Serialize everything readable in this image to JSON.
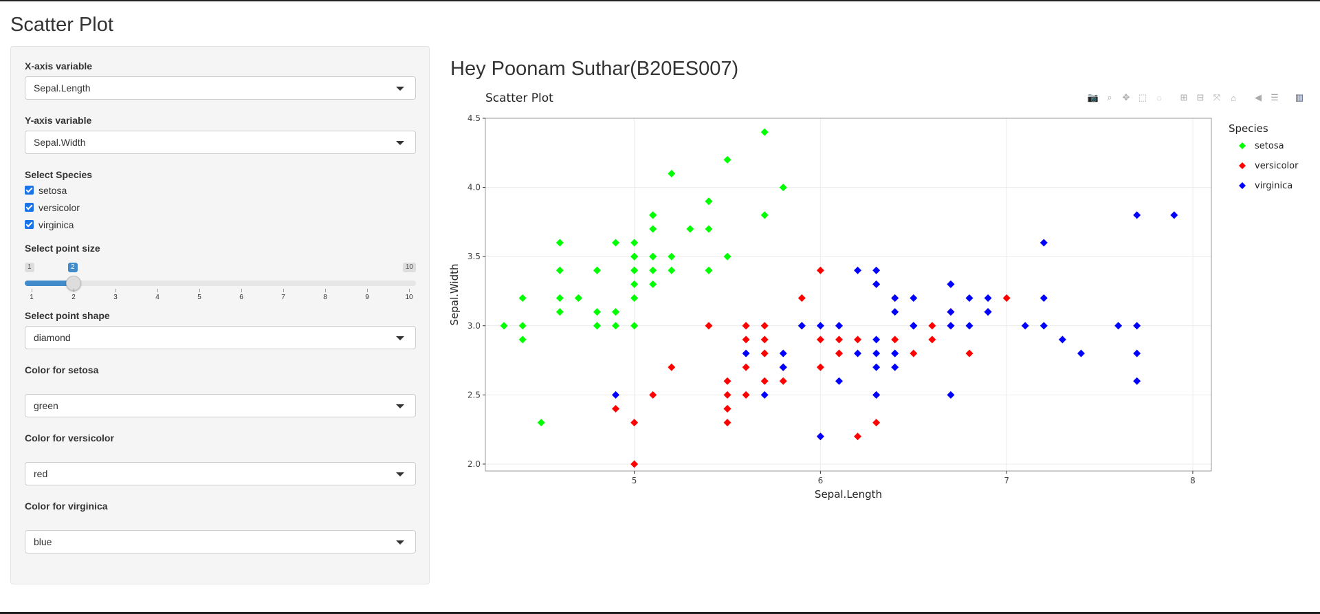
{
  "app_title": "Scatter Plot",
  "sidebar": {
    "x_label": "X-axis variable",
    "x_value": "Sepal.Length",
    "y_label": "Y-axis variable",
    "y_value": "Sepal.Width",
    "species_label": "Select Species",
    "species": [
      "setosa",
      "versicolor",
      "virginica"
    ],
    "size_label": "Select point size",
    "size_min": "1",
    "size_max": "10",
    "size_value": 2,
    "size_value_label": "2",
    "size_ticks": [
      "1",
      "2",
      "3",
      "4",
      "5",
      "6",
      "7",
      "8",
      "9",
      "10"
    ],
    "shape_label": "Select point shape",
    "shape_value": "diamond",
    "setosa_color_label": "Color for setosa",
    "setosa_color_value": "green",
    "versicolor_color_label": "Color for versicolor",
    "versicolor_color_value": "red",
    "virginica_color_label": "Color for virginica",
    "virginica_color_value": "blue"
  },
  "main": {
    "heading": "Hey Poonam Suthar(B20ES007)"
  },
  "modebar_icons": [
    "camera-icon",
    "zoom-icon",
    "pan-icon",
    "box-select-icon",
    "lasso-icon",
    "zoom-in-icon",
    "zoom-out-icon",
    "autoscale-icon",
    "reset-axes-icon",
    "hover-closest-icon",
    "hover-compare-icon",
    "plotly-logo-icon"
  ],
  "accent_color": "#428bca",
  "chart_data": {
    "type": "scatter",
    "title": "Scatter Plot",
    "xlabel": "Sepal.Length",
    "ylabel": "Sepal.Width",
    "xlim": [
      4.2,
      8.1
    ],
    "ylim": [
      1.95,
      4.5
    ],
    "xticks": [
      5,
      6,
      7,
      8
    ],
    "yticks": [
      2.0,
      2.5,
      3.0,
      3.5,
      4.0,
      4.5
    ],
    "ytick_labels": [
      "2.0",
      "2.5",
      "3.0",
      "3.5",
      "4.0",
      "4.5"
    ],
    "grid": true,
    "legend_title": "Species",
    "legend_position": "top-right",
    "marker": "diamond",
    "series": [
      {
        "name": "setosa",
        "color": "#00ff00",
        "points": [
          [
            5.1,
            3.5
          ],
          [
            4.9,
            3.0
          ],
          [
            4.7,
            3.2
          ],
          [
            4.6,
            3.1
          ],
          [
            5.0,
            3.6
          ],
          [
            5.4,
            3.9
          ],
          [
            4.6,
            3.4
          ],
          [
            5.0,
            3.4
          ],
          [
            4.4,
            2.9
          ],
          [
            4.9,
            3.1
          ],
          [
            5.4,
            3.7
          ],
          [
            4.8,
            3.4
          ],
          [
            4.8,
            3.0
          ],
          [
            4.3,
            3.0
          ],
          [
            5.8,
            4.0
          ],
          [
            5.7,
            4.4
          ],
          [
            5.4,
            3.9
          ],
          [
            5.1,
            3.5
          ],
          [
            5.7,
            3.8
          ],
          [
            5.1,
            3.8
          ],
          [
            5.4,
            3.4
          ],
          [
            5.1,
            3.7
          ],
          [
            4.6,
            3.6
          ],
          [
            5.1,
            3.3
          ],
          [
            4.8,
            3.4
          ],
          [
            5.0,
            3.0
          ],
          [
            5.0,
            3.4
          ],
          [
            5.2,
            3.5
          ],
          [
            5.2,
            3.4
          ],
          [
            4.7,
            3.2
          ],
          [
            4.8,
            3.1
          ],
          [
            5.4,
            3.4
          ],
          [
            5.2,
            4.1
          ],
          [
            5.5,
            4.2
          ],
          [
            4.9,
            3.1
          ],
          [
            5.0,
            3.2
          ],
          [
            5.5,
            3.5
          ],
          [
            4.9,
            3.6
          ],
          [
            4.4,
            3.0
          ],
          [
            5.1,
            3.4
          ],
          [
            5.0,
            3.5
          ],
          [
            4.5,
            2.3
          ],
          [
            4.4,
            3.2
          ],
          [
            5.0,
            3.5
          ],
          [
            5.1,
            3.8
          ],
          [
            4.8,
            3.0
          ],
          [
            5.1,
            3.8
          ],
          [
            4.6,
            3.2
          ],
          [
            5.3,
            3.7
          ],
          [
            5.0,
            3.3
          ]
        ]
      },
      {
        "name": "versicolor",
        "color": "#ff0000",
        "points": [
          [
            7.0,
            3.2
          ],
          [
            6.4,
            3.2
          ],
          [
            6.9,
            3.1
          ],
          [
            5.5,
            2.3
          ],
          [
            6.5,
            2.8
          ],
          [
            5.7,
            2.8
          ],
          [
            6.3,
            3.3
          ],
          [
            4.9,
            2.4
          ],
          [
            6.6,
            2.9
          ],
          [
            5.2,
            2.7
          ],
          [
            5.0,
            2.0
          ],
          [
            5.9,
            3.0
          ],
          [
            6.0,
            2.2
          ],
          [
            6.1,
            2.9
          ],
          [
            5.6,
            2.9
          ],
          [
            6.7,
            3.1
          ],
          [
            5.6,
            3.0
          ],
          [
            5.8,
            2.7
          ],
          [
            6.2,
            2.2
          ],
          [
            5.6,
            2.5
          ],
          [
            5.9,
            3.2
          ],
          [
            6.1,
            2.8
          ],
          [
            6.3,
            2.5
          ],
          [
            6.1,
            2.8
          ],
          [
            6.4,
            2.9
          ],
          [
            6.6,
            3.0
          ],
          [
            6.8,
            2.8
          ],
          [
            6.7,
            3.0
          ],
          [
            6.0,
            2.9
          ],
          [
            5.7,
            2.6
          ],
          [
            5.5,
            2.4
          ],
          [
            5.5,
            2.4
          ],
          [
            5.8,
            2.7
          ],
          [
            6.0,
            2.7
          ],
          [
            5.4,
            3.0
          ],
          [
            6.0,
            3.4
          ],
          [
            6.7,
            3.1
          ],
          [
            6.3,
            2.3
          ],
          [
            5.6,
            3.0
          ],
          [
            5.5,
            2.5
          ],
          [
            5.5,
            2.6
          ],
          [
            6.1,
            3.0
          ],
          [
            5.8,
            2.6
          ],
          [
            5.0,
            2.3
          ],
          [
            5.6,
            2.7
          ],
          [
            5.7,
            3.0
          ],
          [
            5.7,
            2.9
          ],
          [
            6.2,
            2.9
          ],
          [
            5.1,
            2.5
          ],
          [
            5.7,
            2.8
          ]
        ]
      },
      {
        "name": "virginica",
        "color": "#0000ff",
        "points": [
          [
            6.3,
            3.3
          ],
          [
            5.8,
            2.7
          ],
          [
            7.1,
            3.0
          ],
          [
            6.3,
            2.9
          ],
          [
            6.5,
            3.0
          ],
          [
            7.6,
            3.0
          ],
          [
            4.9,
            2.5
          ],
          [
            7.3,
            2.9
          ],
          [
            6.7,
            2.5
          ],
          [
            7.2,
            3.6
          ],
          [
            6.5,
            3.2
          ],
          [
            6.4,
            2.7
          ],
          [
            6.8,
            3.0
          ],
          [
            5.7,
            2.5
          ],
          [
            5.8,
            2.8
          ],
          [
            6.4,
            3.2
          ],
          [
            6.5,
            3.0
          ],
          [
            7.7,
            3.8
          ],
          [
            7.7,
            2.6
          ],
          [
            6.0,
            2.2
          ],
          [
            6.9,
            3.2
          ],
          [
            5.6,
            2.8
          ],
          [
            7.7,
            2.8
          ],
          [
            6.3,
            2.7
          ],
          [
            6.7,
            3.3
          ],
          [
            7.2,
            3.2
          ],
          [
            6.2,
            2.8
          ],
          [
            6.1,
            3.0
          ],
          [
            6.4,
            2.8
          ],
          [
            7.2,
            3.0
          ],
          [
            7.4,
            2.8
          ],
          [
            7.9,
            3.8
          ],
          [
            6.4,
            2.8
          ],
          [
            6.3,
            2.8
          ],
          [
            6.1,
            2.6
          ],
          [
            7.7,
            3.0
          ],
          [
            6.3,
            3.4
          ],
          [
            6.4,
            3.1
          ],
          [
            6.0,
            3.0
          ],
          [
            6.9,
            3.1
          ],
          [
            6.7,
            3.1
          ],
          [
            6.9,
            3.1
          ],
          [
            5.8,
            2.7
          ],
          [
            6.8,
            3.2
          ],
          [
            6.7,
            3.3
          ],
          [
            6.7,
            3.0
          ],
          [
            6.3,
            2.5
          ],
          [
            6.5,
            3.0
          ],
          [
            6.2,
            3.4
          ],
          [
            5.9,
            3.0
          ]
        ]
      }
    ]
  }
}
